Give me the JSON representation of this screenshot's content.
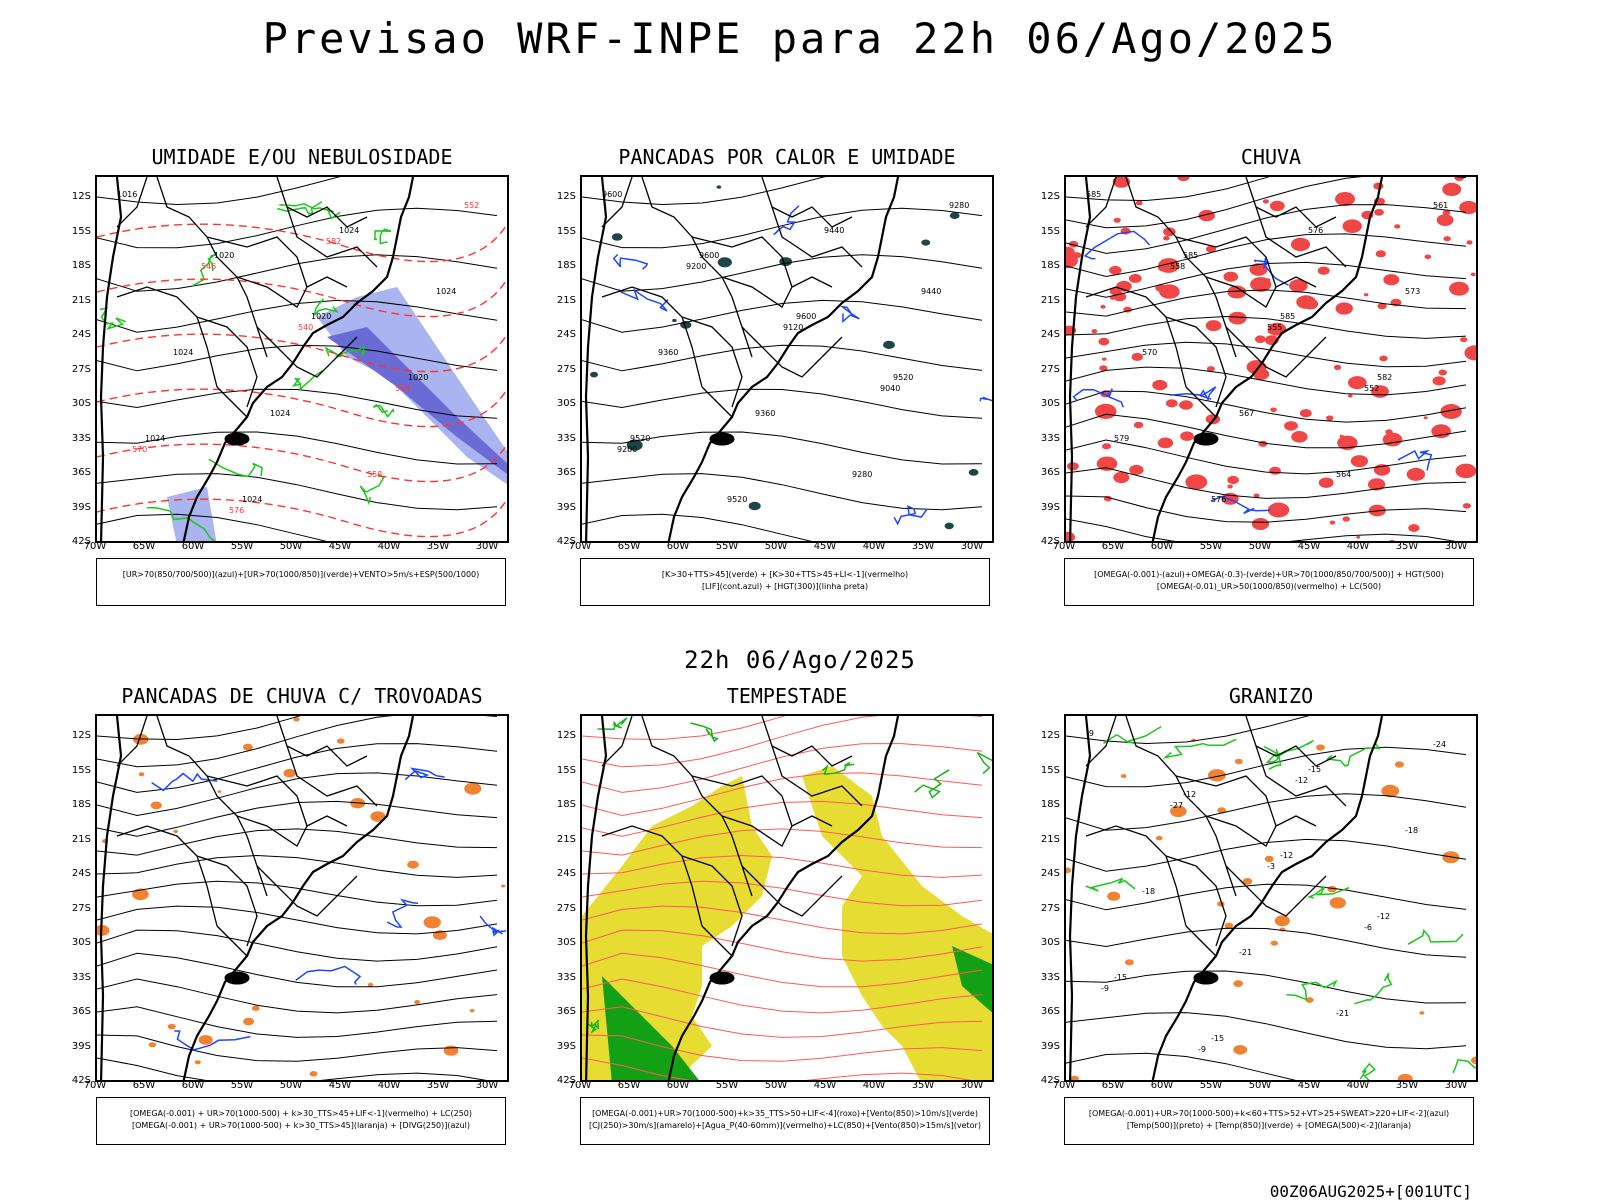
{
  "header": {
    "title": "Previsao WRF-INPE  para 22h 06/Ago/2025"
  },
  "mid_time": "22h 06/Ago/2025",
  "run_info": "00Z06AUG2025+[001UTC]",
  "axes": {
    "lat_labels": [
      "12S",
      "15S",
      "18S",
      "21S",
      "24S",
      "27S",
      "30S",
      "33S",
      "36S",
      "39S",
      "42S"
    ],
    "lon_labels": [
      "70W",
      "65W",
      "60W",
      "55W",
      "50W",
      "45W",
      "40W",
      "35W",
      "30W"
    ]
  },
  "panels": [
    {
      "id": "umidade",
      "title": "UMIDADE E/OU NEBULOSIDADE",
      "legend": [
        "[UR>70(850/700/500)](azul)+[UR>70(1000/850)](verde)+VENTO>5m/s+ESP(500/1000)"
      ],
      "contour_labels": [
        "1016",
        "1020",
        "1020",
        "1020",
        "1024",
        "1024",
        "1024",
        "1024",
        "1024",
        "1024",
        "558",
        "552",
        "546",
        "540",
        "564",
        "570",
        "576",
        "582"
      ],
      "colors": {
        "fill": "#aab4f0",
        "fill_dark": "#6b6bd6",
        "contour_a": "#19c819",
        "contour_b": "#ff3232"
      }
    },
    {
      "id": "pancadas_calor",
      "title": "PANCADAS POR CALOR E UMIDADE",
      "legend": [
        "[K>30+TTS>45](verde) + [K>30+TTS>45+LI<-1](vermelho)",
        "[LIF](cont.azul) + [HGT(300)](linha preta)"
      ],
      "contour_labels": [
        "9600",
        "9600",
        "9600",
        "9520",
        "9520",
        "9520",
        "9440",
        "9440",
        "9360",
        "9360",
        "9280",
        "9280",
        "9200",
        "9120",
        "9040",
        "9200"
      ],
      "colors": {
        "fill": "#1e4646",
        "contour_a": "#1e46ff",
        "contour_b": "#ff3232"
      }
    },
    {
      "id": "chuva",
      "title": "CHUVA",
      "legend": [
        "[OMEGA(-0.001)-(azul)+OMEGA(-0.3)-(verde)+UR>70(1000/850/700/500)] + HGT(500)",
        "[OMEGA(-0.01)_UR>50(1000/850)(vermelho) + LC(500)"
      ],
      "contour_labels": [
        "585",
        "585",
        "585",
        "582",
        "579",
        "576",
        "576",
        "573",
        "570",
        "567",
        "564",
        "561",
        "558",
        "555",
        "552"
      ],
      "colors": {
        "fill": "#f04646",
        "contour_a": "#1e46ff",
        "contour_b": "#19c819"
      }
    },
    {
      "id": "trovoadas",
      "title": "PANCADAS DE CHUVA C/ TROVOADAS",
      "legend": [
        "[OMEGA(-0.001) + UR>70(1000-500) + k>30_TTS>45+LIF<-1](vermelho) + LC(250)",
        "[OMEGA(-0.001) + UR>70(1000-500) + k>30_TTS>45](laranja) + [DIVG(250)](azul)"
      ],
      "contour_labels": [],
      "colors": {
        "fill": "#f08232",
        "contour_a": "#1e46ff",
        "contour_b": "#ff3232"
      }
    },
    {
      "id": "tempestade",
      "title": "TEMPESTADE",
      "legend": [
        "[OMEGA(-0.001)+UR>70(1000-500)+k>35_TTS>50+LIF<-4](roxo)+[Vento(850)>10m/s](verde)",
        "[CJ(250)>30m/s](amarelo)+[Agua_P(40-60mm)](vermelho)+LC(850)+[Vento(850)>15m/s](vetor)"
      ],
      "contour_labels": [],
      "colors": {
        "fill": "#e6dc32",
        "contour_a": "#19b419",
        "contour_b": "#ff5a5a"
      }
    },
    {
      "id": "granizo",
      "title": "GRANIZO",
      "legend": [
        "[OMEGA(-0.001)+UR>70(1000-500)+k<60+TTS>52+VT>25+SWEAT>220+LIF<-2](azul)",
        "[Temp(500)](preto) + [Temp(850)](verde) + [OMEGA(500)<-2](laranja)"
      ],
      "contour_labels": [
        "-9",
        "-12",
        "-12",
        "-12",
        "-15",
        "-15",
        "-15",
        "-18",
        "-18",
        "-21",
        "-21",
        "-24",
        "-27",
        "-3",
        "-6",
        "-9",
        "-9",
        "-12"
      ],
      "colors": {
        "fill": "#f08232",
        "contour_a": "#19c819",
        "contour_b": "#000000"
      }
    }
  ]
}
